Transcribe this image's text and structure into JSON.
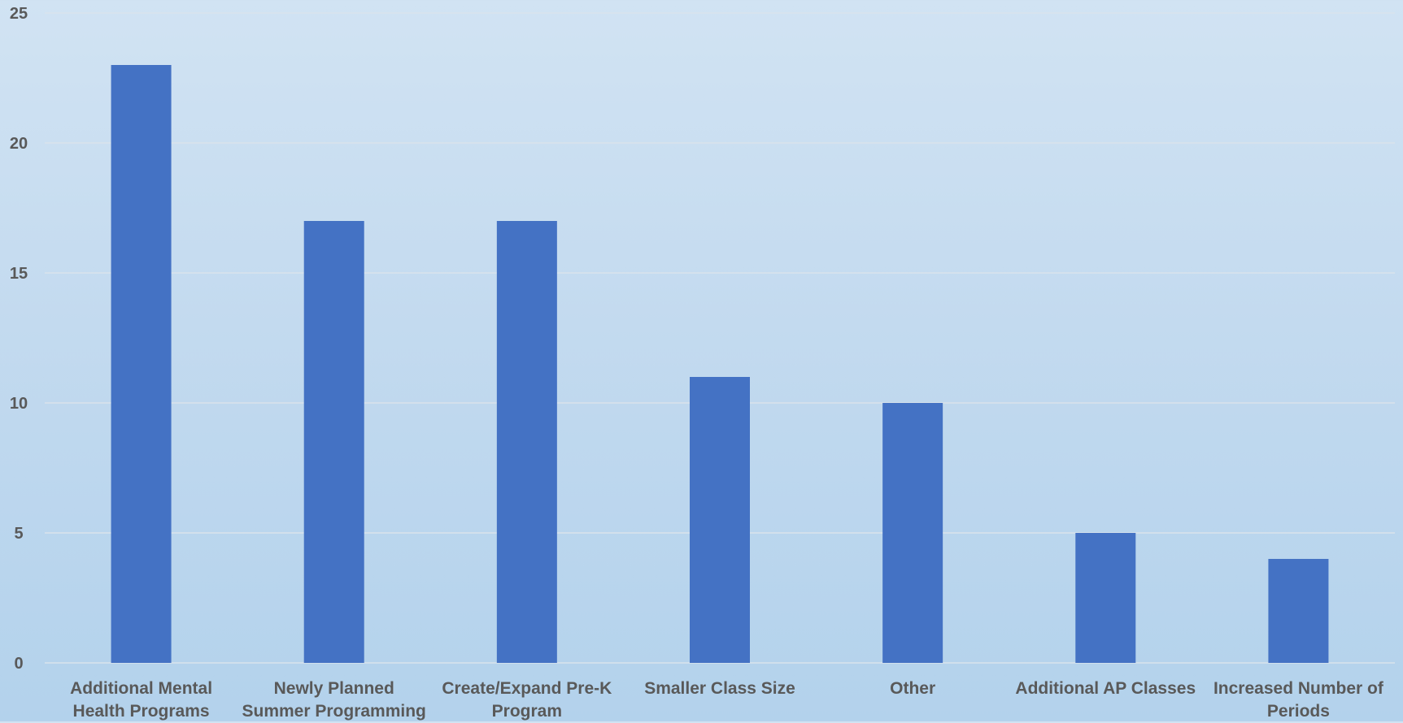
{
  "chart_data": {
    "type": "bar",
    "title": "",
    "xlabel": "",
    "ylabel": "",
    "categories": [
      "Additional Mental Health Programs",
      "Newly Planned Summer Programming",
      "Create/Expand Pre-K Program",
      "Smaller Class Size",
      "Other",
      "Additional AP Classes",
      "Increased Number of Periods"
    ],
    "values": [
      23,
      17,
      17,
      11,
      10,
      5,
      4
    ],
    "ylim": [
      0,
      25
    ],
    "yticks": [
      0,
      5,
      10,
      15,
      20,
      25
    ],
    "grid": true,
    "legend": "none",
    "colors": {
      "bar": "#4472c4",
      "grid": "#d9e3ec",
      "tick_text": "#595959"
    }
  }
}
